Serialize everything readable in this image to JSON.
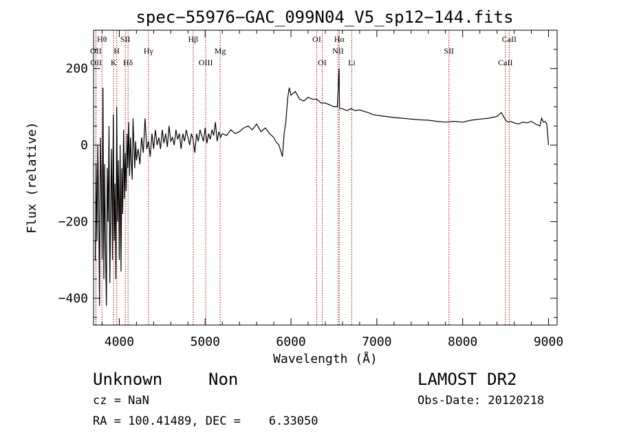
{
  "chart_data": {
    "type": "line",
    "title": "spec−55976−GAC_099N04_V5_sp12−144.fits",
    "xlabel": "Wavelength (Å)",
    "ylabel": "Flux (relative)",
    "xlim": [
      3700,
      9100
    ],
    "ylim": [
      -470,
      300
    ],
    "x_ticks": [
      4000,
      5000,
      6000,
      7000,
      8000,
      9000
    ],
    "x_tick_labels": [
      "4000",
      "5000",
      "6000",
      "7000",
      "8000",
      "9000"
    ],
    "y_ticks": [
      -400,
      -200,
      0,
      200
    ],
    "y_tick_labels": [
      "−400",
      "−200",
      "0",
      "200"
    ],
    "grid": false,
    "line_color": "#000000",
    "marker_color": "#aa0000",
    "series": [
      {
        "x": [
          3720,
          3730,
          3740,
          3750,
          3760,
          3770,
          3780,
          3790,
          3800,
          3810,
          3820,
          3830,
          3840,
          3850,
          3860,
          3870,
          3880,
          3890,
          3900,
          3910,
          3920,
          3930,
          3940,
          3950,
          3960,
          3970,
          3980,
          3990,
          4000,
          4010,
          4020,
          4030,
          4040,
          4050,
          4060,
          4070,
          4080,
          4090,
          4100,
          4110,
          4120,
          4130,
          4140,
          4150,
          4160,
          4170,
          4180,
          4190,
          4200,
          4220,
          4240,
          4260,
          4280,
          4300,
          4320,
          4340,
          4360,
          4380,
          4400,
          4420,
          4440,
          4460,
          4480,
          4500,
          4520,
          4540,
          4560,
          4580,
          4600,
          4620,
          4640,
          4660,
          4680,
          4700,
          4720,
          4740,
          4760,
          4780,
          4800,
          4820,
          4840,
          4860,
          4880,
          4900,
          4920,
          4940,
          4960,
          4980,
          5000,
          5020,
          5040,
          5060,
          5080,
          5100,
          5120,
          5140,
          5160,
          5180,
          5200,
          5250,
          5300,
          5350,
          5400,
          5450,
          5500,
          5550,
          5600,
          5650,
          5700,
          5750,
          5800,
          5820,
          5840,
          5860,
          5880,
          5900,
          5920,
          5940,
          5960,
          5980,
          6000,
          6050,
          6100,
          6150,
          6200,
          6250,
          6300,
          6350,
          6400,
          6450,
          6500,
          6540,
          6560,
          6565,
          6570,
          6600,
          6650,
          6700,
          6750,
          6800,
          6850,
          6900,
          6950,
          7000,
          7100,
          7200,
          7300,
          7400,
          7500,
          7600,
          7700,
          7800,
          7900,
          8000,
          8100,
          8200,
          8300,
          8400,
          8450,
          8500,
          8530,
          8560,
          8600,
          8650,
          8700,
          8750,
          8800,
          8850,
          8900,
          8920,
          8940,
          8960,
          8980,
          9000
        ],
        "y": [
          -300,
          -50,
          -250,
          0,
          -150,
          -420,
          20,
          -100,
          -300,
          150,
          -350,
          -50,
          -280,
          -420,
          -60,
          -200,
          50,
          -360,
          -150,
          -10,
          -300,
          80,
          -250,
          -100,
          -350,
          100,
          -200,
          -40,
          -300,
          0,
          -330,
          -60,
          -180,
          40,
          -140,
          -20,
          -120,
          30,
          -60,
          60,
          -80,
          20,
          -40,
          -90,
          70,
          0,
          -60,
          10,
          -40,
          -10,
          -50,
          20,
          -20,
          70,
          -10,
          10,
          -30,
          30,
          -10,
          40,
          0,
          20,
          -10,
          40,
          5,
          30,
          -5,
          50,
          10,
          20,
          0,
          40,
          15,
          30,
          -10,
          30,
          10,
          40,
          20,
          0,
          30,
          15,
          -20,
          30,
          10,
          40,
          25,
          10,
          45,
          5,
          30,
          15,
          40,
          25,
          60,
          10,
          35,
          20,
          30,
          25,
          40,
          30,
          35,
          45,
          50,
          40,
          55,
          35,
          45,
          30,
          20,
          10,
          5,
          0,
          -15,
          -30,
          30,
          60,
          120,
          150,
          130,
          140,
          120,
          115,
          125,
          120,
          120,
          110,
          110,
          105,
          100,
          100,
          200,
          100,
          95,
          95,
          90,
          95,
          90,
          92,
          88,
          85,
          80,
          78,
          75,
          72,
          70,
          68,
          66,
          65,
          62,
          60,
          62,
          60,
          65,
          68,
          70,
          75,
          85,
          65,
          60,
          62,
          58,
          55,
          60,
          58,
          62,
          55,
          50,
          70,
          60,
          62,
          55,
          0
        ]
      }
    ],
    "line_markers": [
      {
        "label": "Hθ",
        "x": 3798,
        "row": 1
      },
      {
        "label": "OII",
        "x": 3727,
        "row": 2
      },
      {
        "label": "OII",
        "x": 3729,
        "row": 3
      },
      {
        "label": "H",
        "x": 3970,
        "row": 2
      },
      {
        "label": "K",
        "x": 3934,
        "row": 3
      },
      {
        "label": "SII",
        "x": 4070,
        "row": 1
      },
      {
        "label": "Hδ",
        "x": 4102,
        "row": 3
      },
      {
        "label": "Hγ",
        "x": 4340,
        "row": 2
      },
      {
        "label": "Hβ",
        "x": 4861,
        "row": 1
      },
      {
        "label": "OIII",
        "x": 5007,
        "row": 3
      },
      {
        "label": "Mg",
        "x": 5175,
        "row": 2
      },
      {
        "label": "OI",
        "x": 6300,
        "row": 1
      },
      {
        "label": "OI",
        "x": 6364,
        "row": 3
      },
      {
        "label": "Hα",
        "x": 6563,
        "row": 1
      },
      {
        "label": "NII",
        "x": 6548,
        "row": 2
      },
      {
        "label": "Li",
        "x": 6708,
        "row": 3
      },
      {
        "label": "SII",
        "x": 7840,
        "row": 2
      },
      {
        "label": "CaII",
        "x": 8542,
        "row": 1
      },
      {
        "label": "CaII",
        "x": 8498,
        "row": 3
      }
    ]
  },
  "footer": {
    "class_label": "Unknown",
    "subclass_label": "Non",
    "survey": "LAMOST DR2",
    "cz": "cz = NaN",
    "obs_date": "Obs-Date: 20120218",
    "radec": "RA = 100.41489, DEC =    6.33050"
  }
}
